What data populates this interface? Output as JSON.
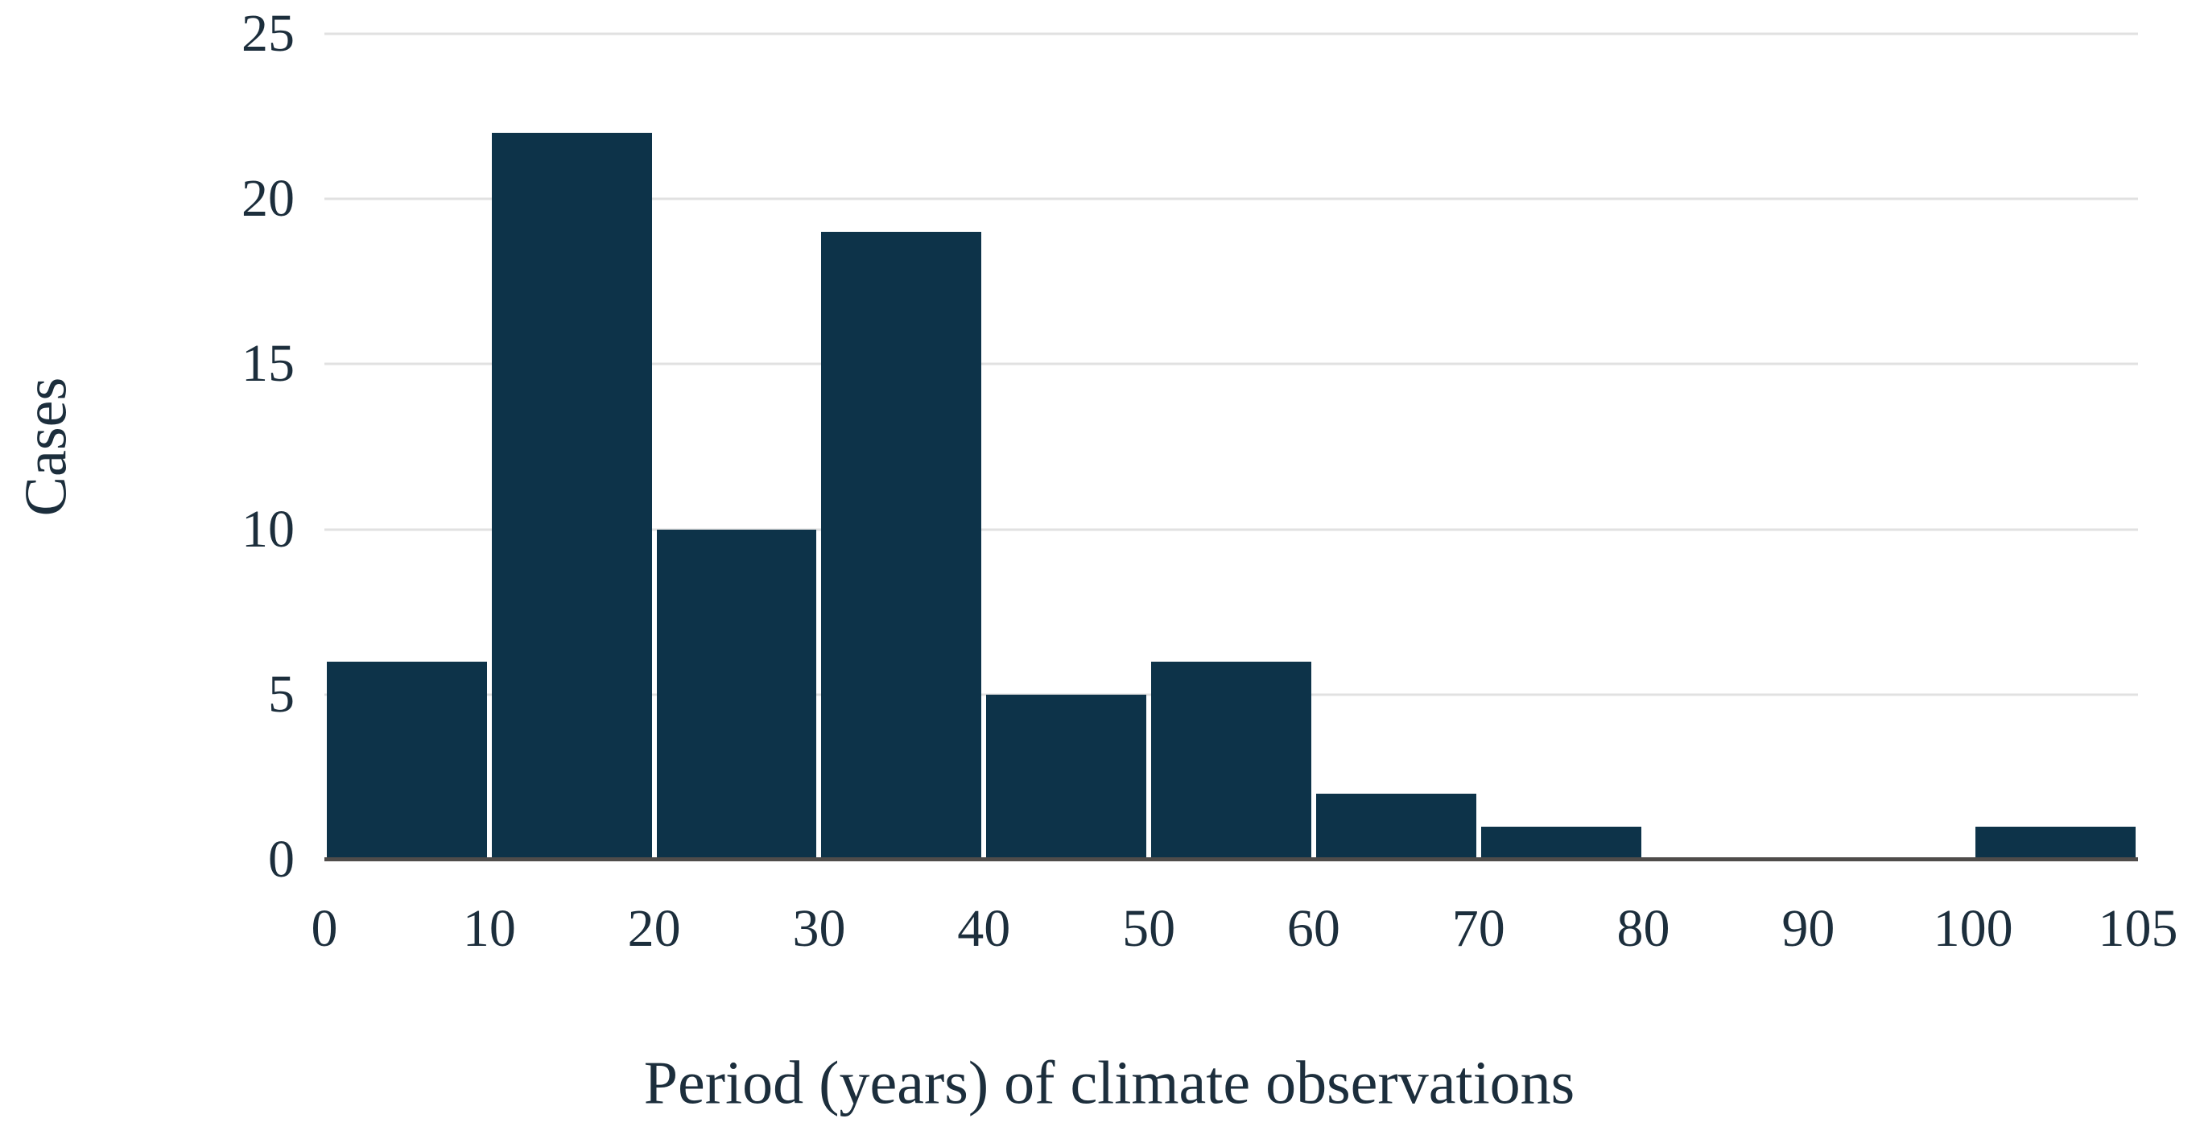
{
  "figure": {
    "background": "#ffffff"
  },
  "chart_data": {
    "type": "bar",
    "title": "",
    "xlabel": "Period (years) of climate observations",
    "ylabel": "Cases",
    "bins": [
      "0-10",
      "10-20",
      "20-30",
      "30-40",
      "40-50",
      "50-60",
      "60-70",
      "70-80",
      "80-90",
      "90-100",
      "100-105"
    ],
    "values": [
      6,
      22,
      10,
      19,
      5,
      6,
      2,
      1,
      0,
      0,
      1
    ],
    "xticks": [
      "0",
      "10",
      "20",
      "30",
      "40",
      "50",
      "60",
      "70",
      "80",
      "90",
      "100",
      "105"
    ],
    "yticks": [
      0,
      5,
      10,
      15,
      20,
      25
    ],
    "ylim": [
      0,
      25
    ],
    "grid": "horizontal",
    "legend": "none",
    "bar_color": "#0d3349",
    "gridline_color": "#e1e1e1",
    "axis_line_color": "#4f4c4a",
    "text_color": "#1c2e3c"
  }
}
